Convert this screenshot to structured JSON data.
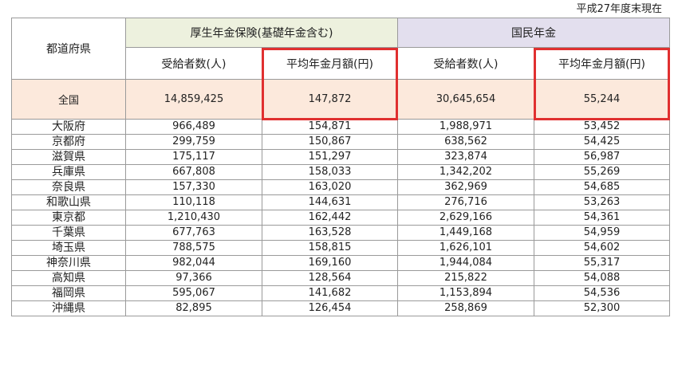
{
  "note": "平成27年度末現在",
  "header": {
    "prefecture": "都道府県",
    "group1": "厚生年金保険(基礎年金含む)",
    "group2": "国民年金",
    "recipients": "受給者数(人)",
    "avg_monthly": "平均年金月額(円)"
  },
  "total": {
    "name": "全国",
    "kosei_recipients": "14,859,425",
    "kosei_avg": "147,872",
    "kokumin_recipients": "30,645,654",
    "kokumin_avg": "55,244"
  },
  "rows": [
    {
      "name": "大阪府",
      "kosei_recipients": "966,489",
      "kosei_avg": "154,871",
      "kokumin_recipients": "1,988,971",
      "kokumin_avg": "53,452"
    },
    {
      "name": "京都府",
      "kosei_recipients": "299,759",
      "kosei_avg": "150,867",
      "kokumin_recipients": "638,562",
      "kokumin_avg": "54,425"
    },
    {
      "name": "滋賀県",
      "kosei_recipients": "175,117",
      "kosei_avg": "151,297",
      "kokumin_recipients": "323,874",
      "kokumin_avg": "56,987"
    },
    {
      "name": "兵庫県",
      "kosei_recipients": "667,808",
      "kosei_avg": "158,033",
      "kokumin_recipients": "1,342,202",
      "kokumin_avg": "55,269"
    },
    {
      "name": "奈良県",
      "kosei_recipients": "157,330",
      "kosei_avg": "163,020",
      "kokumin_recipients": "362,969",
      "kokumin_avg": "54,685"
    },
    {
      "name": "和歌山県",
      "kosei_recipients": "110,118",
      "kosei_avg": "144,631",
      "kokumin_recipients": "276,716",
      "kokumin_avg": "53,263"
    },
    {
      "name": "東京都",
      "kosei_recipients": "1,210,430",
      "kosei_avg": "162,442",
      "kokumin_recipients": "2,629,166",
      "kokumin_avg": "54,361"
    },
    {
      "name": "千葉県",
      "kosei_recipients": "677,763",
      "kosei_avg": "163,528",
      "kokumin_recipients": "1,449,168",
      "kokumin_avg": "54,959"
    },
    {
      "name": "埼玉県",
      "kosei_recipients": "788,575",
      "kosei_avg": "158,815",
      "kokumin_recipients": "1,626,101",
      "kokumin_avg": "54,602"
    },
    {
      "name": "神奈川県",
      "kosei_recipients": "982,044",
      "kosei_avg": "169,160",
      "kokumin_recipients": "1,944,084",
      "kokumin_avg": "55,317"
    },
    {
      "name": "高知県",
      "kosei_recipients": "97,366",
      "kosei_avg": "128,564",
      "kokumin_recipients": "215,822",
      "kokumin_avg": "54,088"
    },
    {
      "name": "福岡県",
      "kosei_recipients": "595,067",
      "kosei_avg": "141,682",
      "kokumin_recipients": "1,153,894",
      "kokumin_avg": "54,536"
    },
    {
      "name": "沖縄県",
      "kosei_recipients": "82,895",
      "kosei_avg": "126,454",
      "kokumin_recipients": "258,869",
      "kokumin_avg": "52,300"
    }
  ],
  "colors": {
    "group1_bg": "#edf1de",
    "group2_bg": "#e3dfee",
    "total_bg": "#fce9dc",
    "highlight": "#e03030"
  }
}
